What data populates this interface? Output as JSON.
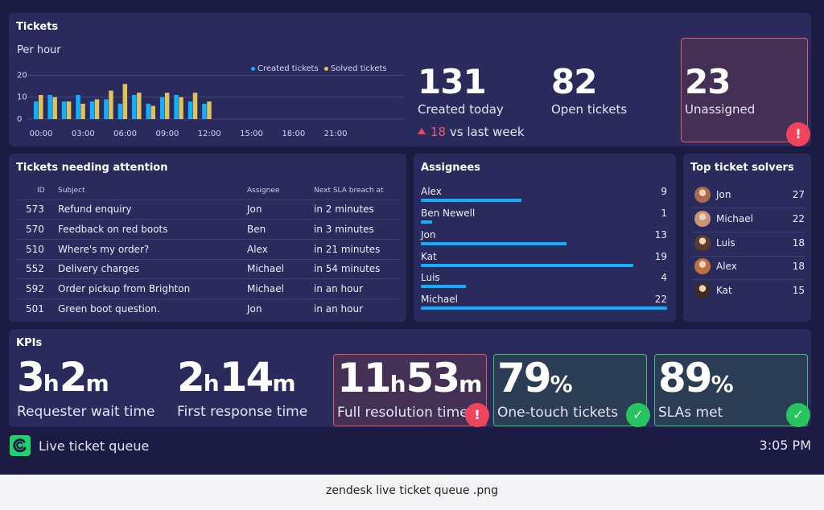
{
  "tickets": {
    "title": "Tickets",
    "chart_subtitle": "Per hour",
    "legend": {
      "created": "Created tickets",
      "solved": "Solved tickets"
    },
    "created_today": {
      "value": "131",
      "label": "Created today"
    },
    "open": {
      "value": "82",
      "label": "Open tickets"
    },
    "unassigned": {
      "value": "23",
      "label": "Unassigned"
    },
    "trend": {
      "value": "18",
      "label": "vs last week"
    },
    "colors": {
      "created": "#0fb0ff",
      "solved": "#e0c15a",
      "alert": "#f0445d",
      "ok": "#27c55f"
    }
  },
  "chart_data": {
    "type": "bar",
    "x_ticks": [
      "00:00",
      "03:00",
      "06:00",
      "09:00",
      "12:00",
      "15:00",
      "18:00",
      "21:00"
    ],
    "y_ticks": [
      "20",
      "10",
      "0"
    ],
    "ylim": [
      0,
      22
    ],
    "legend_position": "top-right",
    "series": [
      {
        "name": "Created tickets",
        "values": [
          8,
          11,
          8,
          11,
          8,
          9,
          7,
          11,
          7,
          10,
          11,
          8,
          7
        ]
      },
      {
        "name": "Solved tickets",
        "values": [
          11,
          10,
          8,
          7,
          9,
          13,
          16,
          12,
          6,
          12,
          10,
          12,
          8
        ]
      }
    ]
  },
  "attention": {
    "title": "Tickets needing attention",
    "columns": [
      "ID",
      "Subject",
      "Assignee",
      "Next SLA breach at"
    ],
    "rows": [
      [
        "573",
        "Refund enquiry",
        "Jon",
        "in 2 minutes"
      ],
      [
        "570",
        "Feedback on red boots",
        "Ben",
        "in 3 minutes"
      ],
      [
        "510",
        "Where's my order?",
        "Alex",
        "in 21 minutes"
      ],
      [
        "552",
        "Delivery charges",
        "Michael",
        "in 54 minutes"
      ],
      [
        "592",
        "Order pickup from Brighton",
        "Michael",
        "in an hour"
      ],
      [
        "501",
        "Green boot question.",
        "Jon",
        "in an hour"
      ]
    ]
  },
  "assignees": {
    "title": "Assignees",
    "max": 22,
    "items": [
      {
        "name": "Alex",
        "value": "9",
        "count": 9
      },
      {
        "name": "Ben Newell",
        "value": "1",
        "count": 1
      },
      {
        "name": "Jon",
        "value": "13",
        "count": 13
      },
      {
        "name": "Kat",
        "value": "19",
        "count": 19
      },
      {
        "name": "Luis",
        "value": "4",
        "count": 4
      },
      {
        "name": "Michael",
        "value": "22",
        "count": 22
      }
    ]
  },
  "solvers": {
    "title": "Top ticket solvers",
    "items": [
      {
        "name": "Jon",
        "value": "27",
        "avatar_color": "#a86a4a"
      },
      {
        "name": "Michael",
        "value": "22",
        "avatar_color": "#c99478"
      },
      {
        "name": "Luis",
        "value": "18",
        "avatar_color": "#5a3c2c"
      },
      {
        "name": "Alex",
        "value": "18",
        "avatar_color": "#c0703e"
      },
      {
        "name": "Kat",
        "value": "15",
        "avatar_color": "#3e2a26"
      }
    ]
  },
  "kpis": {
    "title": "KPIs",
    "items": [
      {
        "parts": [
          "3",
          "h",
          "2",
          "m"
        ],
        "label": "Requester wait time",
        "status": "none"
      },
      {
        "parts": [
          "2",
          "h",
          "14",
          "m"
        ],
        "label": "First response time",
        "status": "none"
      },
      {
        "parts": [
          "11",
          "h",
          "53",
          "m"
        ],
        "label": "Full resolution time",
        "status": "alert"
      },
      {
        "parts": [
          "79",
          "%"
        ],
        "label": "One-touch tickets",
        "status": "ok"
      },
      {
        "parts": [
          "89",
          "%"
        ],
        "label": "SLAs met",
        "status": "ok"
      }
    ]
  },
  "footer": {
    "app_title": "Live ticket queue",
    "time": "3:05 PM",
    "caption": "zendesk live ticket queue .png"
  },
  "icons": {
    "logo": "zendesk-logo-icon",
    "alert": "exclamation-icon",
    "ok": "checkmark-icon",
    "trend": "triangle-up-icon"
  }
}
